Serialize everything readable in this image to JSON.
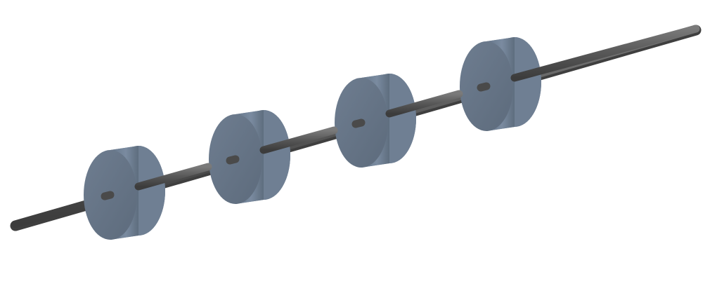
{
  "scene": {
    "description_label": "",
    "shaft": {
      "color": "#4a4a4a",
      "highlight": "#6d6d6d"
    },
    "disk": {
      "count": 4,
      "face_color": "#6b7a8c",
      "side_light": "#7d8ea1",
      "side_dark": "#56636f"
    }
  }
}
